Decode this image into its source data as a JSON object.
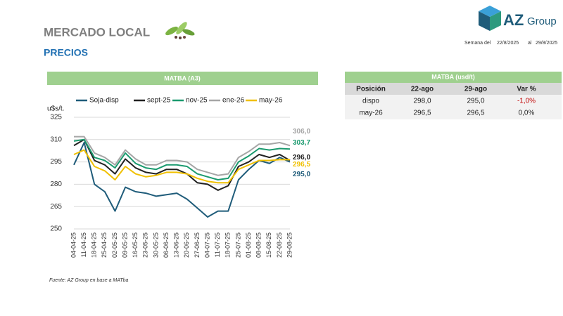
{
  "header": {
    "title": "MERCADO LOCAL",
    "subtitle": "PRECIOS",
    "week_label": "Semana del",
    "week_start": "22/8/2025",
    "week_sep": "al",
    "week_end": "29/8/2025",
    "logo_main": "AZ",
    "logo_sub": "Group"
  },
  "panel_title": "MATBA (A3)",
  "chart_data": {
    "type": "line",
    "y_label": "u$s/t.",
    "categories": [
      "04-04-25",
      "11-04-25",
      "18-04-25",
      "25-04-25",
      "02-05-25",
      "09-05-25",
      "16-05-25",
      "23-05-25",
      "30-05-25",
      "06-06-25",
      "13-06-25",
      "20-06-25",
      "27-06-25",
      "04-07-25",
      "11-07-25",
      "18-07-25",
      "25-07-25",
      "01-08-25",
      "08-08-25",
      "15-08-25",
      "22-08-25",
      "29-08-25"
    ],
    "series": [
      {
        "name": "Soja-disp",
        "color": "#1f5c7a",
        "values": [
          293,
          308,
          280,
          275,
          262,
          278,
          275,
          274,
          272,
          273,
          274,
          270,
          264,
          258,
          262,
          262,
          283,
          290,
          296,
          294,
          298,
          295
        ],
        "value_labels": [
          null,
          null,
          null,
          null,
          null,
          null,
          null,
          null,
          null,
          null,
          null,
          null,
          null,
          null,
          null,
          null,
          null,
          null,
          null,
          null,
          null,
          "295,0"
        ]
      },
      {
        "name": "sept-25",
        "color": "#222222",
        "values": [
          306,
          310,
          296,
          293,
          287,
          297,
          291,
          288,
          287,
          290,
          290,
          287,
          281,
          280,
          276,
          279,
          292,
          295,
          300,
          298,
          300,
          296
        ],
        "value_labels": [
          null,
          null,
          null,
          null,
          null,
          null,
          null,
          null,
          null,
          null,
          null,
          null,
          null,
          null,
          null,
          null,
          null,
          null,
          null,
          null,
          null,
          "296,0"
        ]
      },
      {
        "name": "nov-25",
        "color": "#1a9a6e",
        "values": [
          309,
          310,
          298,
          296,
          291,
          301,
          294,
          291,
          290,
          293,
          293,
          292,
          287,
          285,
          283,
          284,
          295,
          299,
          304,
          303,
          304,
          303.7
        ],
        "value_labels": [
          null,
          null,
          null,
          null,
          null,
          null,
          null,
          null,
          null,
          null,
          null,
          null,
          null,
          null,
          null,
          null,
          null,
          null,
          null,
          null,
          null,
          "303,7"
        ]
      },
      {
        "name": "ene-26",
        "color": "#a6a6a6",
        "values": [
          312,
          312,
          301,
          298,
          293,
          303,
          297,
          293,
          293,
          296,
          296,
          295,
          290,
          288,
          286,
          287,
          298,
          302,
          307,
          307,
          308,
          306
        ],
        "value_labels": [
          null,
          null,
          null,
          null,
          null,
          null,
          null,
          null,
          null,
          null,
          null,
          null,
          null,
          null,
          null,
          null,
          null,
          null,
          null,
          null,
          null,
          "306,0"
        ]
      },
      {
        "name": "may-26",
        "color": "#f0c000",
        "values": [
          300,
          303,
          292,
          289,
          283,
          292,
          287,
          285,
          286,
          288,
          288,
          287,
          284,
          282,
          281,
          281,
          290,
          293,
          296,
          296,
          296.5,
          296.5
        ],
        "value_labels": [
          null,
          null,
          null,
          null,
          null,
          null,
          null,
          null,
          null,
          null,
          null,
          null,
          null,
          null,
          null,
          null,
          null,
          null,
          null,
          null,
          null,
          "296,5"
        ]
      }
    ],
    "ylim": [
      250,
      325
    ],
    "yticks": [
      250,
      265,
      280,
      295,
      310,
      325
    ],
    "grid": true
  },
  "source": "Fuente: AZ Group en base a MATba",
  "table": {
    "title": "MATBA (usd/t)",
    "header": [
      "Posición",
      "22-ago",
      "29-ago",
      "Var %"
    ],
    "rows": [
      [
        "dispo",
        "298,0",
        "295,0",
        "-1,0%"
      ],
      [
        "may-26",
        "296,5",
        "296,5",
        "0,0%"
      ]
    ]
  }
}
